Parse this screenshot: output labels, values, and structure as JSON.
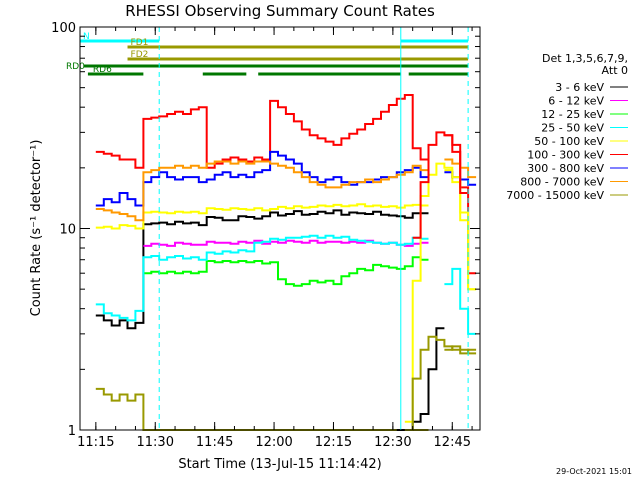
{
  "chart_data": {
    "type": "line",
    "title": "RHESSI Observing Summary Count Rates",
    "xlabel": "Start Time (13-Jul-15 11:14:42)",
    "ylabel": "Count Rate (s⁻¹ detector⁻¹)",
    "y_scale": "log",
    "xlim": [
      "11:11",
      "12:52"
    ],
    "ylim": [
      1,
      100
    ],
    "x_ticks": [
      "11:15",
      "11:30",
      "11:45",
      "12:00",
      "12:15",
      "12:30",
      "12:45"
    ],
    "x_tick_minutes": [
      675,
      690,
      705,
      720,
      735,
      750,
      765
    ],
    "y_ticks": [
      {
        "value": 1,
        "label": "1"
      },
      {
        "value": 10,
        "label": "10"
      },
      {
        "value": 100,
        "label": "100"
      }
    ],
    "x": [
      "11:15",
      "11:17",
      "11:19",
      "11:21",
      "11:23",
      "11:25",
      "11:27",
      "11:29",
      "11:31",
      "11:33",
      "11:35",
      "11:37",
      "11:39",
      "11:41",
      "11:43",
      "11:45",
      "11:47",
      "11:49",
      "11:51",
      "11:53",
      "11:55",
      "11:57",
      "11:59",
      "12:01",
      "12:03",
      "12:05",
      "12:07",
      "12:09",
      "12:11",
      "12:13",
      "12:15",
      "12:17",
      "12:19",
      "12:21",
      "12:23",
      "12:25",
      "12:27",
      "12:29",
      "12:31",
      "12:33",
      "12:35",
      "12:37",
      "12:39",
      "12:41",
      "12:43",
      "12:45",
      "12:47",
      "12:49"
    ],
    "legend": {
      "header": [
        "Det 1,3,5,6,7,9,",
        "Att 0"
      ],
      "position": "right"
    },
    "series": [
      {
        "name": "3 - 6 keV",
        "color": "#000000",
        "values": [
          3.7,
          3.5,
          3.3,
          3.5,
          3.2,
          3.4,
          10.5,
          10.6,
          10.7,
          10.5,
          10.8,
          10.6,
          10.7,
          10.4,
          11.4,
          11.3,
          11.0,
          11.0,
          11.5,
          11.4,
          11.2,
          11.5,
          12.0,
          11.6,
          11.8,
          12.2,
          11.7,
          11.8,
          12.1,
          11.9,
          12.3,
          11.7,
          12.0,
          11.9,
          11.8,
          12.1,
          11.7,
          11.6,
          11.5,
          11.3,
          11.9,
          11.9,
          null,
          null,
          null,
          null,
          null,
          null
        ]
      },
      {
        "name": "6 - 12 keV",
        "color": "#ff00ff",
        "values": [
          null,
          null,
          null,
          null,
          null,
          null,
          8.2,
          8.4,
          8.3,
          8.2,
          8.5,
          8.4,
          8.3,
          8.3,
          8.6,
          8.5,
          8.5,
          8.4,
          8.6,
          8.5,
          8.7,
          8.4,
          8.6,
          8.5,
          8.7,
          8.6,
          8.5,
          8.7,
          8.5,
          8.6,
          8.6,
          8.5,
          8.6,
          8.5,
          8.7,
          8.5,
          8.4,
          8.5,
          8.3,
          8.2,
          8.4,
          8.5,
          null,
          null,
          null,
          null,
          null,
          null
        ]
      },
      {
        "name": "12 - 25 keV",
        "color": "#00ff00",
        "values": [
          null,
          null,
          null,
          null,
          null,
          null,
          6.0,
          6.1,
          6.0,
          6.1,
          6.0,
          6.1,
          6.0,
          6.1,
          6.9,
          6.8,
          6.9,
          6.8,
          6.9,
          6.8,
          6.9,
          6.7,
          6.8,
          5.6,
          5.3,
          5.2,
          5.3,
          5.5,
          5.4,
          5.5,
          5.3,
          5.8,
          6.0,
          6.3,
          6.2,
          6.6,
          6.5,
          6.4,
          6.3,
          6.5,
          7.2,
          7.0,
          null,
          null,
          null,
          null,
          null,
          null
        ]
      },
      {
        "name": "25 - 50 keV",
        "color": "#00ffff",
        "values": [
          4.2,
          3.8,
          3.7,
          3.6,
          3.5,
          3.9,
          7.2,
          7.3,
          7.0,
          7.2,
          7.3,
          7.1,
          7.2,
          7.0,
          7.6,
          7.5,
          7.7,
          7.6,
          7.8,
          7.7,
          8.5,
          8.6,
          8.9,
          8.8,
          9.0,
          9.0,
          9.1,
          9.2,
          9.0,
          9.2,
          9.0,
          9.1,
          8.8,
          8.7,
          8.6,
          8.5,
          8.4,
          8.5,
          8.3,
          8.4,
          9.0,
          8.9,
          null,
          null,
          5.3,
          6.3,
          4.0,
          3.0
        ]
      },
      {
        "name": "50 - 100 keV",
        "color": "#ffff00",
        "values": [
          10.1,
          10.2,
          10.0,
          10.4,
          10.3,
          10.0,
          12.0,
          12.1,
          12.0,
          11.9,
          12.1,
          12.0,
          12.1,
          11.9,
          12.6,
          12.5,
          12.4,
          12.6,
          12.5,
          12.4,
          12.6,
          12.3,
          12.5,
          12.8,
          12.6,
          12.9,
          12.7,
          12.8,
          13.0,
          12.9,
          13.1,
          12.9,
          13.0,
          13.2,
          12.9,
          13.0,
          12.8,
          12.9,
          12.7,
          13.0,
          13.1,
          13.0,
          null,
          null,
          19.5,
          17.0,
          11.0,
          5.0
        ]
      },
      {
        "name": "100 - 300 keV",
        "color": "#ff0000",
        "values": [
          24.0,
          23.5,
          23.0,
          22.0,
          22.0,
          20.0,
          35.0,
          35.5,
          36.0,
          37.0,
          38.0,
          37.0,
          39.0,
          40.0,
          20.0,
          21.0,
          22.0,
          22.5,
          22.0,
          21.5,
          22.5,
          22.0,
          43.0,
          40.0,
          37.0,
          34.0,
          31.0,
          29.0,
          28.0,
          27.0,
          26.0,
          28.0,
          29.5,
          31.0,
          33.0,
          35.0,
          38.0,
          41.0,
          44.0,
          46.0,
          25.0,
          22.0,
          null,
          null,
          29.0,
          26.0,
          16.0,
          6.0
        ]
      },
      {
        "name": "300 - 800 keV",
        "color": "#0000ff",
        "values": [
          13.0,
          14.0,
          13.5,
          15.0,
          14.0,
          13.0,
          17.0,
          18.0,
          19.0,
          18.0,
          17.5,
          18.0,
          18.0,
          17.0,
          17.5,
          18.5,
          19.0,
          18.0,
          18.5,
          18.0,
          19.0,
          19.5,
          24.0,
          23.0,
          22.0,
          21.0,
          19.0,
          18.0,
          17.0,
          17.5,
          18.0,
          17.0,
          16.5,
          17.0,
          17.0,
          17.5,
          18.0,
          18.0,
          19.0,
          19.5,
          20.0,
          18.0,
          null,
          null,
          19.0,
          18.0,
          17.5,
          16.5
        ]
      },
      {
        "name": "800 - 7000 keV",
        "color": "#ff9900",
        "values": [
          12.5,
          12.3,
          12.0,
          11.8,
          11.5,
          11.0,
          19.0,
          19.5,
          20.0,
          20.0,
          20.5,
          20.0,
          20.5,
          20.0,
          21.0,
          21.5,
          21.5,
          21.0,
          21.5,
          21.0,
          21.5,
          21.5,
          21.0,
          20.5,
          20.0,
          19.0,
          18.0,
          17.0,
          16.5,
          16.0,
          16.0,
          16.5,
          17.0,
          17.0,
          17.5,
          17.0,
          17.5,
          18.0,
          18.5,
          19.0,
          20.5,
          19.5,
          null,
          null,
          22.0,
          21.0,
          20.0,
          18.0
        ]
      },
      {
        "name": "7000 - 15000 keV",
        "color": "#999900",
        "values": [
          1.6,
          1.5,
          1.4,
          1.5,
          1.4,
          1.5,
          1.0,
          1.0,
          1.0,
          1.0,
          1.0,
          1.0,
          1.0,
          1.0,
          1.0,
          1.0,
          1.0,
          1.0,
          1.0,
          1.0,
          1.0,
          1.0,
          1.0,
          1.0,
          1.0,
          1.0,
          1.0,
          1.0,
          1.0,
          1.0,
          1.0,
          1.0,
          1.0,
          1.0,
          1.0,
          1.0,
          1.0,
          1.0,
          1.0,
          1.0,
          1.0,
          1.0,
          null,
          null,
          2.5,
          2.6,
          2.4,
          2.5
        ]
      }
    ],
    "extra_segments": [
      {
        "series": "3 - 6 keV",
        "x": [
          "12:31",
          "12:33",
          "12:35",
          "12:37",
          "12:39",
          "12:41",
          "12:43",
          "12:45",
          "12:47",
          "12:49"
        ],
        "values": [
          1.0,
          1.0,
          1.1,
          1.2,
          2.0,
          3.2,
          null,
          null,
          null,
          null
        ]
      },
      {
        "series": "50 - 100 keV",
        "x": [
          "12:33",
          "12:35",
          "12:37",
          "12:39",
          "12:41",
          "12:43",
          "12:45",
          "12:47",
          "12:49"
        ],
        "values": [
          1.1,
          5.5,
          14.5,
          18.5,
          21.0,
          20.0,
          18.0,
          12.0,
          5.0
        ]
      },
      {
        "series": "100 - 300 keV",
        "x": [
          "12:35",
          "12:37",
          "12:39",
          "12:41",
          "12:43",
          "12:45",
          "12:47"
        ],
        "values": [
          9.0,
          17.0,
          26.0,
          30.0,
          29.0,
          24.0,
          15.0
        ]
      },
      {
        "series": "7000 - 15000 keV",
        "x": [
          "12:33",
          "12:35",
          "12:37",
          "12:39",
          "12:41",
          "12:43",
          "12:45",
          "12:47",
          "12:49"
        ],
        "values": [
          1.0,
          1.8,
          2.5,
          2.9,
          2.8,
          2.6,
          2.5,
          2.5,
          2.4
        ]
      }
    ],
    "flags": [
      {
        "label": "N",
        "color": "#00ffff",
        "segments": [
          [
            "11:11",
            "11:31"
          ],
          [
            "12:32",
            "12:49"
          ]
        ],
        "row": 0
      },
      {
        "label": "FD1",
        "color": "#999900",
        "segments": [
          [
            "11:23",
            "12:49"
          ]
        ],
        "row": 1
      },
      {
        "label": "FD2",
        "color": "#999900",
        "segments": [
          [
            "11:23",
            "12:49"
          ]
        ],
        "row": 2
      },
      {
        "label": "RD0",
        "color": "#007700",
        "segments": [
          [
            "11:12",
            "12:49"
          ]
        ],
        "row": 3
      },
      {
        "label": "RD6",
        "color": "#007700",
        "segments": [
          [
            "11:13",
            "11:27"
          ],
          [
            "11:42",
            "11:53"
          ],
          [
            "11:56",
            "12:32"
          ],
          [
            "12:34",
            "12:49"
          ]
        ],
        "row": 4
      }
    ],
    "vertical_lines": [
      {
        "at": "11:31",
        "color": "#00ffff",
        "style": "dashed"
      },
      {
        "at": "12:32",
        "color": "#00ffff",
        "style": "solid"
      },
      {
        "at": "12:49",
        "color": "#00ffff",
        "style": "dashed"
      }
    ],
    "grid": false
  },
  "footer": {
    "timestamp": "29-Oct-2021 15:01"
  }
}
